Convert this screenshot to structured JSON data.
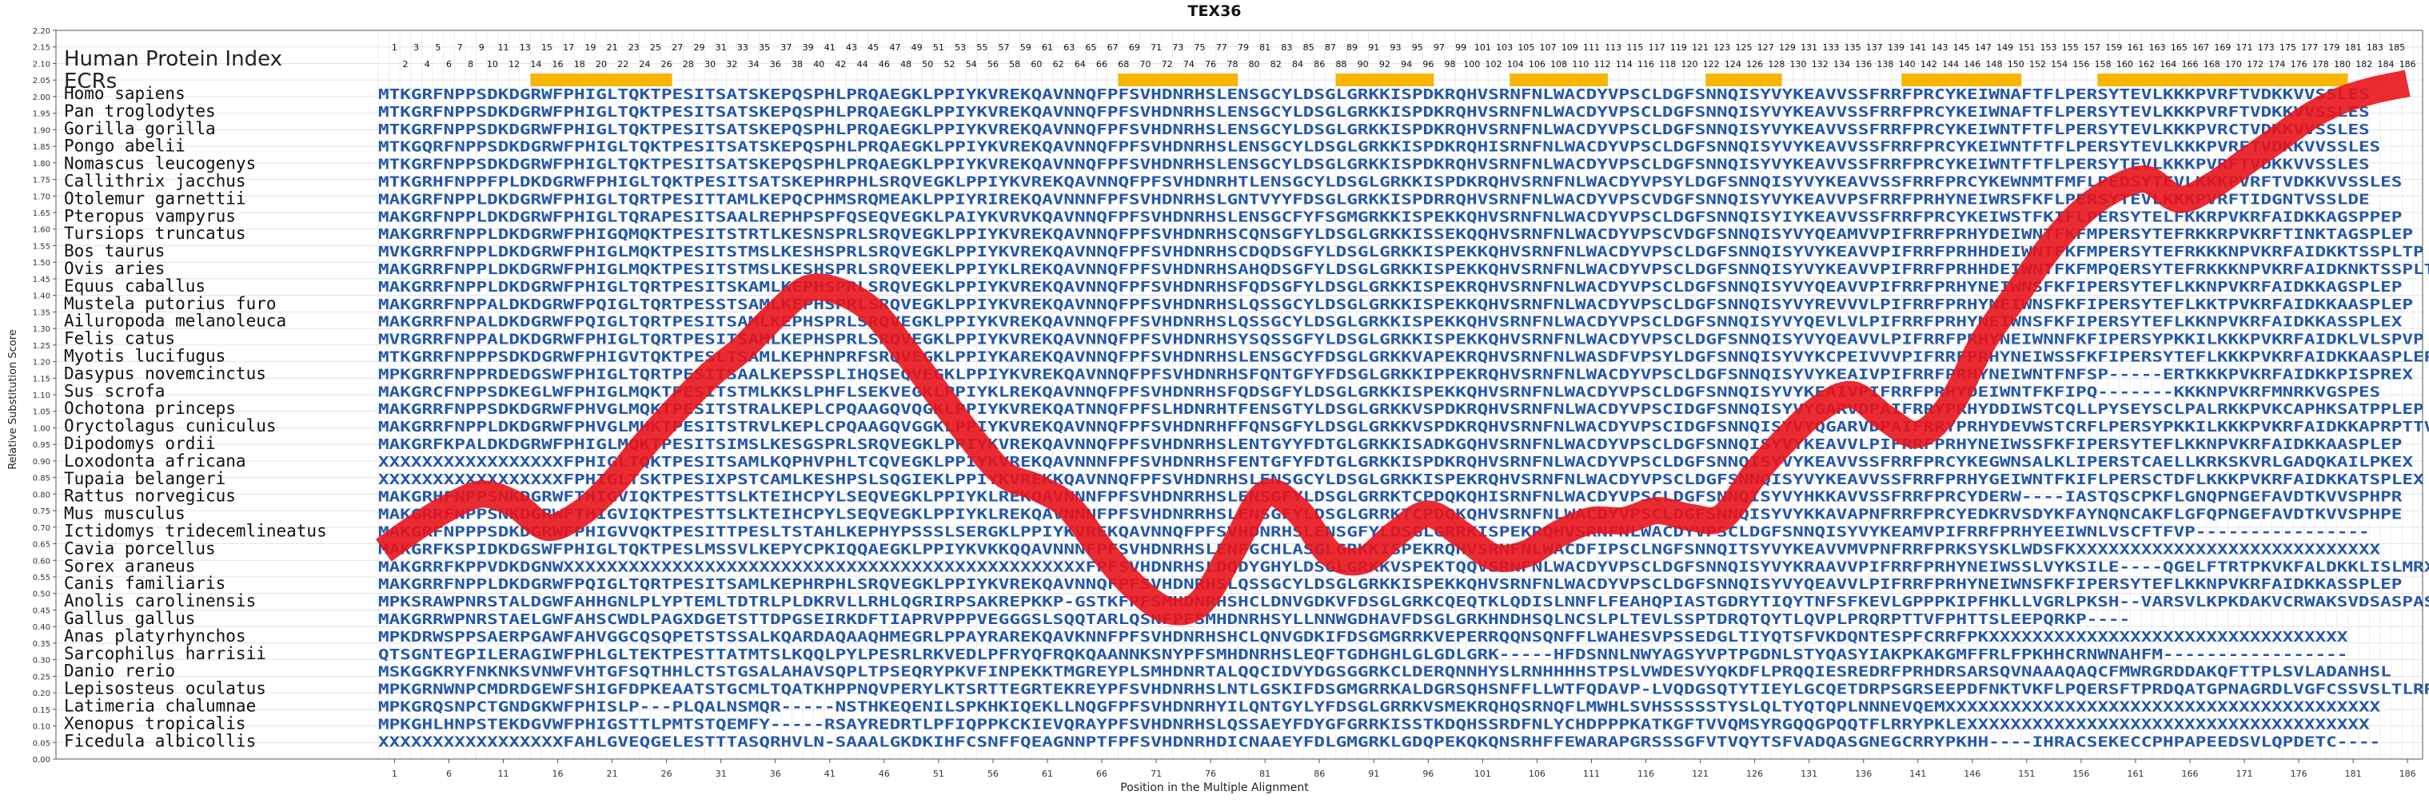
{
  "chart_data": {
    "type": "line",
    "title": "TEX36",
    "xlabel": "Position in the Multiple Alignment",
    "ylabel": "Relative Substitution Score",
    "xlim": [
      0,
      186
    ],
    "ylim": [
      0,
      2.2
    ],
    "y_ticks": [
      0.0,
      0.05,
      0.1,
      0.15,
      0.2,
      0.25,
      0.3,
      0.35,
      0.4,
      0.45,
      0.5,
      0.55,
      0.6,
      0.65,
      0.7,
      0.75,
      0.8,
      0.85,
      0.9,
      0.95,
      1.0,
      1.05,
      1.1,
      1.15,
      1.2,
      1.25,
      1.3,
      1.35,
      1.4,
      1.45,
      1.5,
      1.55,
      1.6,
      1.65,
      1.7,
      1.75,
      1.8,
      1.85,
      1.9,
      1.95,
      2.0,
      2.05,
      2.1,
      2.15,
      2.2
    ],
    "x_ticks": [
      1,
      6,
      11,
      16,
      21,
      26,
      31,
      36,
      41,
      46,
      51,
      56,
      61,
      66,
      71,
      76,
      81,
      86,
      91,
      96,
      101,
      106,
      111,
      116,
      121,
      126,
      131,
      136,
      141,
      146,
      151,
      156,
      161,
      166,
      171,
      176,
      181,
      186
    ],
    "grid": true,
    "header_label": "Human Protein Index",
    "ecr_label": "ECRs",
    "ecr_regions": [
      [
        14,
        26
      ],
      [
        68,
        78
      ],
      [
        88,
        96
      ],
      [
        104,
        112
      ],
      [
        122,
        128
      ],
      [
        140,
        150
      ],
      [
        158,
        180
      ]
    ],
    "series": [
      {
        "color": "#e8141c",
        "x": [
          0,
          3,
          6,
          9,
          12,
          15,
          18,
          21,
          24,
          27,
          30,
          33,
          36,
          39,
          42,
          45,
          48,
          51,
          54,
          57,
          60,
          63,
          66,
          69,
          72,
          75,
          78,
          81,
          84,
          87,
          90,
          93,
          96,
          99,
          102,
          105,
          108,
          111,
          114,
          117,
          120,
          123,
          126,
          129,
          132,
          135,
          138,
          141,
          144,
          147,
          150,
          153,
          156,
          159,
          162,
          165,
          168,
          171,
          174,
          177,
          180,
          183,
          186
        ],
        "values": [
          0.63,
          0.7,
          0.76,
          0.8,
          0.77,
          0.7,
          0.74,
          0.83,
          0.95,
          1.06,
          1.16,
          1.24,
          1.34,
          1.42,
          1.41,
          1.35,
          1.23,
          1.1,
          0.97,
          0.86,
          0.82,
          0.76,
          0.63,
          0.52,
          0.45,
          0.47,
          0.63,
          0.8,
          0.75,
          0.62,
          0.6,
          0.68,
          0.74,
          0.68,
          0.61,
          0.62,
          0.68,
          0.72,
          0.72,
          0.75,
          0.73,
          0.73,
          0.86,
          0.97,
          1.06,
          1.1,
          1.03,
          0.98,
          1.07,
          1.26,
          1.4,
          1.54,
          1.65,
          1.72,
          1.75,
          1.69,
          1.73,
          1.8,
          1.87,
          1.94,
          1.99,
          2.02,
          2.04
        ]
      }
    ],
    "species": [
      "Homo sapiens",
      "Pan troglodytes",
      "Gorilla gorilla",
      "Pongo abelii",
      "Nomascus leucogenys",
      "Callithrix jacchus",
      "Otolemur garnettii",
      "Pteropus vampyrus",
      "Tursiops truncatus",
      "Bos taurus",
      "Ovis aries",
      "Equus caballus",
      "Mustela putorius furo",
      "Ailuropoda melanoleuca",
      "Felis catus",
      "Myotis lucifugus",
      "Dasypus novemcinctus",
      "Sus scrofa",
      "Ochotona princeps",
      "Oryctolagus cuniculus",
      "Dipodomys ordii",
      "Loxodonta africana",
      "Tupaia belangeri",
      "Rattus norvegicus",
      "Mus musculus",
      "Ictidomys tridecemlineatus",
      "Cavia porcellus",
      "Sorex araneus",
      "Canis familiaris",
      "Anolis carolinensis",
      "Gallus gallus",
      "Anas platyrhynchos",
      "Sarcophilus harrisii",
      "Danio rerio",
      "Lepisosteus oculatus",
      "Latimeria chalumnae",
      "Xenopus tropicalis",
      "Ficedula albicollis"
    ],
    "sequences": [
      "MTKGRFNPPSDKDGRWFPHIGLTQKTPESITSATSKEPQSPHLPRQAEGKLPPIYKVREKQAVNNQFPFSVHDNRHSLENSGCYLDSGLGRKKISPDKRQHVSRNFNLWACDYVPSCLDGFSNNQISYVYKEAVVSSFRRFPRCYKEIWNAFTFLPERSYTEVLKKKPVRFTVDKKVVSSLES",
      "MTKGRFNPPSDKDGRWFPHIGLTQKTPESITSATSKEPQSPHLPRQAEGKLPPIYKVREKQAVNNQFPFSVHDNRHSLENSGCYLDSGLGRKKISPDKRQHVSRNFNLWACDYVPSCLDGFSNNQISYVYKEAVVSSFRRFPRCYKEIWNAFTFLPERSYTEVLKKKPVRFTVDKKVVSSLES",
      "MTKGRFNPPSDKDGRWFPHIGLTQKTPESITSATSKEPQSPHLPRQAEGKLPPIYKVREKQAVNNQFPFSVHDNRHSLENSGCYLDSGLGRKKISPDKRQHVSRNFNLWACDYVPSCLDGFSNNQISYVYKEAVVSSFRRFPRCYKEIWNTFTFLPERSYTEVLKKKPVRCTVDKKVVSSLES",
      "MTKGQRFNPPSDKDGRWFPHIGLTQKTPESITSATSKEPQSPHLPRQAEGKLPPIYKVREKQAVNNQFPFSVHDNRHSLENSGCYLDSGLGRKKISPDKRQHISRNFNLWACDYVPSCLDGFSNNQISYVYKEAVVSSFRRFPRCYKEIWNTFTFLPERSYTEVLKKKPVRFTVDKKVVSSLES",
      "MTKGRFNPPSDKDGRWFPHIGLTQKTPESITSATSKEPQSPHLPRQAEGKLPPIYKVREKQAVNNQFPFSVHDNRHSLENSGCYLDSGLGRKKISPDKRQHVSRNFNLWACDYVPSCLDGFSNNQISYVYKEAVVSSFRRFPRCYKEIWNTFTFLPERSYTEVLKKKPVRFTVDKKVVSSLES",
      "MTKGRHFNPPFPLDKDGRWFPHIGLTQKTPESITSATSKEPHRPHLSRQVEGKLPPIYKVREKQAVNNQFPFSVHDNRHTLENSGCYLDSGLGRKKISPDKRQHVSRNFNLWACDYVPSYLDGFSNNQISYVYKEAVVSSFRRFPRCYKEWNMTFMFLPEDSYTEVLKKKPVRFTVDKKVVSSLES",
      "MAKGRFNPPLDKDGRWFPHIGLTQRTPESITTAMLKEPQCPHMSRQMEAKLPPIYRIREKQAVNNNFPFSVHDNRHSLGNTVYYFDSGLGRKKISPDRRQHVSRNFNLWACDYVPSCVDGFSNNQISYVYKEAVVPSFRRFPRHYNEIWRSFKFLPERSYTEVLKKKPVRFTIDGNTVSSLDE",
      "MAKGRFNPPLDKDGRWFPHIGLTQRAPESITSAALREPHPSPFQSEQVEGKLPAIYKVRVKQAVNNQFPFSVHDNRHSLENSGCFYFSGMGRKKISPEKKQHVSRNFNLWACDYVPSCLDGFSNNQISYIYKEAVVSSFRRFPRCYKEIWSTFKIFLPERSYTELFKKRPVKRFAIDKKAGSPPEP",
      "MAKGRRFNPPLDKDGRWFPHIGQMQKTPESITSTRTLKESNSPRLSRQVEGKLPPIYKVREKQAVNNQFPFSVHDNRHSCQNSGFYLDSGLGRKKISSEKQQHVSRNFNLWACDYVPSCVDGFSNNQISYVYQEAMVVPIFRRFPRHYDEIWNTFKFMPERSYTEFRKKRPVKRFTINKTAGSPLEP",
      "MVKGRRFNPPLDKDGRWFPHIGLMQKTPESITSTMSLKESHSPRLSRQVEGKLPPIYKVREKQAVNNQFPFSVHDNRHSCDQDSGFYLDSGLGRKKISPEKKQHVSRNFNLWACDYVPSCLDGFSNNQISYVYKEAVVPIFRRFPRHHDEIWNTFKFMPERSYTEFRKKKNPVKRFAIDKKTSSPLTP",
      "MAKGRRFNPPLDKDGRWFPHIGLMQKTPESITSTMSLKESHSPRLSRQVEEKLPPIYKLREKQAVNNQFPFSVHDNRHSAHQDSGFYLDSGLGRKKISPEKKQHVSRNFNLWACDYVPSCLDGFSNNQISYVYKEAVVPIFRRFPRHHDEIWNTFKFMPQERSYTEFRKKKNPVKRFAIDKNKTSSPLTL",
      "MAKGRRFNPPLDKDGRWFPHIGLTQRTPESITSKAMLKEPHSPRLSRQVEGKLPPIYKVREKQAVNNQFPFSVHDNRHSFQDSGFYLDSGLGRKKISPEKRQHVSRNFNLWACDYVPSCLDGFSNNQISYVYQEAVVPIFRRFPRHYNEIWNSFKFIPERSYTEFLKKNPVKRFAIDKKAGSPLEP",
      "MAKGRRFNPPALDKDGRWFPQIGLTQRTPESSTSAMLKEPHSPRLSRQVEGKLPPIYKVREKQAVNNQFPFSVHDNRHSLQSSGCYLDSGLGRKKISPEKKQHVSRNFNLWACDYVPSCLDGFSNNQISYVYREVVVLPIFRRFPRHYNEIWNSFKFIPERSYTEFLKKTPVKRFAIDKKAASPLEP",
      "MAKGRRFNPALDKDGRWFPQIGLTQRTPESITSAMLKEPHSPRLSRQVEGKLPPIYKVREKQAVNNQFPFSVHDNRHSLQSSGCYLDSGLGRKKISPEKKQHVSRNFNLWACDYVPSCLDGFSNNQISYVYQEVLVLPIFRRFPRHYNEIWNSFKFIPERSYTEFLKKNPVKRFAIDKKASSPLEX",
      "MVRGRRFNPPALDKDGRWFPHIGLTQRTPESITSAMLKEPHSPRLSRQVEGKLPPIYKVREKQAVNNQFPFSVHDNRHSYSQSSGFYLDSGLGRKKISPEKKQHVSRNFNLWACDYVPSCLDGFSNNQISYVYQEAVVLPIFRRFPRHYNEIWNNFKFIPERSYPKKILKKKPVKRFAIDKLVLSPVP",
      "MTKGRRFNPPPSDKDGRWFPHIGVTQKTPESLTSAMLKEPHNPRFSRQVEGKLPPIYKAREKQAVNNQFPFSVHDNRHSLENSGCYFDSGLGRKKVAPEKRQHVSRNFNLWASDFVPSYLDGFSNNQISYVYKCPEIVVVPIFRRFPRHYNEIWSSFKFIPERSYTEFLKKKPVKRFAIDKKAASPLEP",
      "MPKGRRFNPPRDEDGSWFPHIGLTQRTPESITSAALKEPSSPLIHQSEQVEGKLPPIYKVREKQAVNNQFPFSVHDNRHSFQNTGFYFDSGLGRKKIPPEKRQHVSRNFNLWACDYVPSCLDGFSNNQISYVYKEAIVPIFRRFPRHYNEIWNTFNFSP-----ERTKKKPVKRFAIDKKPISPREX",
      "MAKGRCFNPPSDKEGLWFPHIGLMQKTPESITSTMLKKSLPHFLSEKVEGKLPPIYKLREKQAVNNQFPFSVHDNRHSFQDSGFYLDSGLGRKKISPEKKQHVSRNFNLWACDYVPSCLDGFSNNQISYVYKEAIVPIFRRFPRHYDEIWNTFKFIPQ-------KKKNPVKRFMNRKVGSPES",
      "MAKGRRFNPPSDKDGRWFPHVGLMQKTPESITSTRALKEPLCPQAAGQVQGKLPPIYKVREKQATNNQFPFSLHDNRHTFENSGTYLDSGLGRKKVSPDKRQHVSRNFNLWACDYVPSCIDGFSNNQISYVYGARVDPAIFRRYPRHYDDIWSTCQLLPYSEYSCLPALRKKPVKCAPHKSATPPLEP",
      "MAKGRRFNPPLDKDGRWFPHVGLMHKTPESITSTRVLKEPLCPQAAGQVGGKLPPIYKVREKQAVNNQFPFSVHDNRHFFQNSGFYLDSGLGRKKVSPDKRQHVSRNFNLWACDYVPSCIDGFSNNQISYVYQGARVDPAIFRRYPRHYDEVWSTCRFLPERSYPKKILKKKPVKRFAIDKKAPRPTTVST",
      "MAKGRFKPALDKDGRWFPHIGLMQKTPESITSIMSLKESGSPRLSRQVEGKLPPIYKVREKQAVNNQFPFSVHDNRHSLENTGYYFDTGLGRKKISADKGQHVSRNFNLWACDYVPSCLDGFSNNQISYVYKEAVVLPIFRRFPRHYNEIWSSFKFIPERSYTEFLKKNPVKRFAIDKKAASPLEP",
      "XXXXXXXXXXXXXXXXXFPHIGLTQKTPESITSAMLKQPHVPHLTCQVEGKLPPIYKVREKQAVNNNFPFSVHDNRHSFENTGFYFDTGLGRKKISPDKRQHVSRNFNLWACDYVPSCLDGFSNNQISYVYKEAVVSSFRRFPRCYKEGWNSALKLIPERSTCAELLKRKSKVRLGADQKAILPKEX",
      "XXXXXXXXXXXXXXXXXFPHIGLTSKTPESIXPSTCAMLKESHPSLSQGIEKLPPIYKVREKKQAVNNQFPFSVHDNRHSLENSGCYLDSGLGRKKISPEKRQHVSRNFNLWACDYVPSCLDGFSNNQISYVYKEAVVSSFRRFPRHYGEIWNTFKIFLPERSCTDFLKKKPVKRFAIDKKATSPLEX",
      "MAKGRHFNPPSNKDGRWFTHIGVIQKTPESTTSLKTEIHCPYLSEQVEGKLPPIYKLREKQAVNNNFPFSVHDNRRHSLENSGFYLDSGLGRRKTCPDQKQHISRNFNLWACDYVPSCLDGFSNNQISYVYHKKAVVSSFRRFPRCYDERW----IASTQSCPKFLGNQPNGEFAVDTKVVSPHPR",
      "MAKGRRFNPPSNKDGRWFTHIGVIQKTPESTTSLKTEIHCPYLSEQVEGKLPPIYKLREKQAVNNNFPFSVHDNRRHSLENSGFYLDSGLGRRKTCPDQKQHVSRNFNLWACDYVPSCLDGFSNNQISYVYKKAVAPNFRRFPRCYEDKRVSDYKFAYNQNCAKFLGFQPNGEFAVDTKVVSPHPE",
      "MAKGRFNPPPSDKDGRWFPHIGVVQKTPESITTPESLTSTAHLKEPHYPSSSLSERGKLPPIYKVREKQAVNNQFPFSVHDNRHSLENSGFYLDSGLGRRKISPEKRQHVSRNFNLWACDYVPSCLDGFSNNQISYVYKEAMVPIFRRFPRHYEEIWNLVSCFTFVP----------------",
      "MAKGRFKSPIDKDGSWFPHIGLTQKTPESLMSSVLKEPYCPKIQQAEGKLPPIYKVKKQQAVNNNFPFSVHDNRHSLENFGCHLASGLGRKKISPEKRQHVSRNFNLWACDFIPSCLNGFSNNQITSYVYKEAVVMVPNFRRFPRKSYSKLWDSFKXXXXXXXXXXXXXXXXXXXXXXXXXXXX",
      "MAKGRRFKPPVDKDGNWXXXXXXXXXXXXXXXXXXXXXXXXXXXXXXXXXXXXXXXXXXXXXXXXFPFSVHDNRHSLDQDYGHYLDSGLGRKKVSPEKTQQVSRNFNLWACDYVPSCLDGFSNNQISYVYKRAAVVPIFRRFPRHYNEIWSSLVYKSILE----QGELFTRTPKVKFALDKKLISLMRX",
      "MAKGRRFNPPLDKDGRWFPQIGLTQRTPESITSAMLKEPHRPHLSRQVEGKLPPIYKVREKQAVNNQFPFSVHDNRHSLQSSGCYLDSGLGRKKISPEKKQHVSRNFNLWACDYVPSCLDGFSNNQISYVYQEAVVLPIFRRFPRHYNEIWNSFKFIPERSYTEFLKKNPVKRFAIDKKASSPLEP",
      "MPKSRAWPNRSTALDGWFAHHGNLPLYPTEMLTDTRLPLDKRVLLRHLQGRIRPSAKREPKKP-GSTKFPFSMHDNRHSHCLDNVGDKVFDSGLGRKCQEQTKLQDISLNNFLFEAHQPIASTGDRYTIQYTNFSFKEVLGPPPKIPFHKLLVGRLPKSH--VARSVLKPKDAKVCRWAKSVDSASPASPTRFEEX",
      "MAKGRRWPNRSTAELGWFAHSCWDLPAGXDGETSTTDPGSEIRKDFTIAPRVPPPVEGGGSLSQQTARLQSNFPFSMHDNRHSYLLNNWGDHAVFDSGLGRKHNDHSQLNCSLPLTEVLSSPTDRQTQYTLQVPLPRQRPTTVFPHTTSLEEPQRKP----",
      "MPKDRWSPPSAERPGAWFAHVGGCQSQPETSTSSALKQARDAQAAQHMEGRLPPAYRAREKQAVKNNFPFSVHDNRHSHCLQNVGDKIFDSGMGRRKVEPERRQQNSQNFFLWAHESVPSSEDGLTIYQTSFVKDQNTESPFCRRFPKXXXXXXXXXXXXXXXXXXXXXXXXXXXXXXXXX",
      "QTSGNTEGPILERAGIWFPHLGLTEKTPESTTATMTSLKQQLPYLPESRLRKVEDLPFRYQFRQKQAANNKSNYPFSMHDNRHSLEQFTGDHGHLGLGDLGRK-----HFDSNNLNWYAGSYVPTPGDNLSTYQASYIAKPKAKGMFFRLFPKHHCRNWNAHFM-----------------",
      "MSKGGKRYFNKNKSVNWFVHTGFSQTHHLCTSTGSALAHAVSQPLTPSEQRYPKVFINPEKKTMGREYPLSMHDNRTALQQCIDVYDGSGGRKCLDERQNNHYSLRNHHHHSTPSLVWDESVYQKDFLPRQQIESREDRFPRHDRSARSQVNAAAQAQCFMWRGRDDAKQFTTPLSVLADANHSL",
      "MPKGRNWNPCMDRDGEWFSHIGFDPKEAATSTGCMLTQATKHPPNQVPERYLKTSRTTEGRTEKREYPFSVHDNRHSLNTLGSKIFDSGMGRRKALDGRSQHSNFFLLWTFQDAVP-LVQDGSQTYTIEYLGCQETDRPSGRSEEPDFNKTVKFLPQERSFTPRDQATGPNAGRDLVGFCSSVSLTLRRDSP",
      "MPKGRQSNPCTGNDGKWFPHISLP---PLQALNSMQR-----NSTHKEQENILSPKHKIQEKLLNQGFPFSVHDNRHYILQNTGYLYFDSGLGRRKVSMEKRQHQSRNQFLMWHLSVHSSSSSTYSLQLTYQTQPLNNNEVQEMXXXXXXXXXXXXXXXXXXXXXXXXXXXXXXXXXXXXXXXX",
      "MPKGHLHNPSTEKDGVWFPHIGSTTLPMTSTQEMFY-----RSAYREDRTLPFIQPPKCKIEVQRAYPFSVHDNRHSLQSSAEYFDYGFGRRKISSTKDQHSSRDFNLYCHDPPPKATKGFTVVQMSYRGQQGPQQTFLRRYPKLEXXXXXXXXXXXXXXXXXXXXXXXXXXXXXXXXXXXXX",
      "XXXXXXXXXXXXXXXXXFAHLGVEQGELESTTTASQRHVLN-SAAALGKDKIHFCSNFFQEAGNNPTFPFSVHDNRHDICNAAEYFDLGMGRKLGDQPEKQKQNSRHFFEWARAPGRSSSGFVTVQYTSFVADQASGNEGCRRYPKHH----IHRACSEKECCPHPAPEEDSVLQPDETC----"
    ]
  }
}
